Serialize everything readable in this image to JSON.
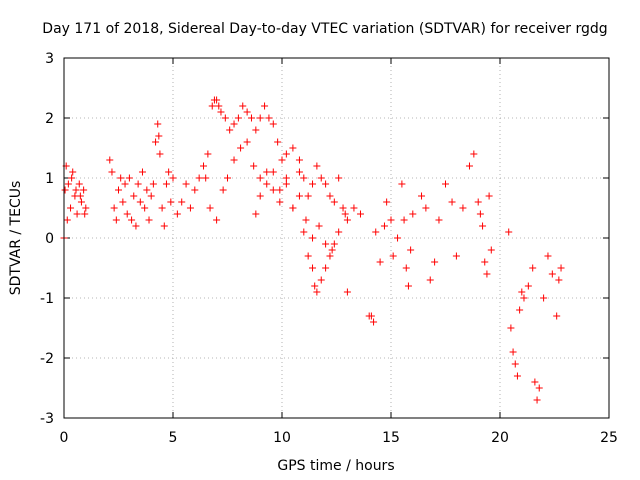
{
  "chart_data": {
    "type": "scatter",
    "title": "Day 171 of 2018, Sidereal Day-to-day VTEC variation (SDTVAR) for receiver rgdg",
    "xlabel": "GPS time / hours",
    "ylabel": "SDTVAR / TECUs",
    "xlim": [
      0,
      25
    ],
    "ylim": [
      -3,
      3
    ],
    "xticks": [
      0,
      5,
      10,
      15,
      20,
      25
    ],
    "yticks": [
      -3,
      -2,
      -1,
      0,
      1,
      2,
      3
    ],
    "xtick_labels": [
      "0",
      "5",
      "10",
      "15",
      "20",
      "25"
    ],
    "ytick_labels": [
      "-3",
      "-2",
      "-1",
      "0",
      "1",
      "2",
      "3"
    ],
    "grid": true,
    "marker": "+",
    "color": "#ff0000",
    "series": [
      {
        "name": "rgdg",
        "x": [
          0.0,
          0.05,
          0.1,
          0.2,
          0.3,
          0.4,
          0.5,
          0.6,
          0.7,
          0.8,
          0.9,
          1.0,
          0.15,
          0.35,
          0.55,
          0.75,
          0.95,
          2.1,
          2.2,
          2.3,
          2.4,
          2.5,
          2.6,
          2.7,
          2.8,
          2.9,
          3.0,
          3.1,
          3.2,
          3.3,
          3.4,
          3.5,
          3.6,
          3.7,
          3.8,
          3.9,
          4.0,
          4.1,
          4.2,
          4.3,
          4.35,
          4.4,
          4.5,
          4.6,
          4.7,
          4.8,
          4.9,
          5.0,
          5.2,
          5.4,
          5.6,
          5.8,
          6.0,
          6.2,
          6.4,
          6.6,
          6.8,
          6.9,
          7.0,
          7.1,
          7.2,
          7.4,
          7.6,
          7.8,
          8.0,
          8.2,
          8.4,
          8.6,
          8.8,
          9.0,
          9.2,
          9.4,
          9.6,
          9.8,
          10.0,
          6.5,
          6.7,
          7.0,
          7.3,
          7.5,
          7.8,
          8.1,
          8.4,
          8.7,
          9.0,
          9.3,
          9.6,
          9.9,
          10.2,
          10.5,
          10.8,
          10.2,
          10.5,
          10.8,
          11.0,
          11.2,
          11.4,
          11.6,
          11.8,
          12.0,
          12.2,
          12.4,
          12.6,
          12.8,
          13.0,
          11.0,
          11.2,
          11.4,
          11.5,
          11.6,
          11.8,
          12.0,
          12.2,
          12.4,
          12.6,
          12.9,
          8.8,
          9.0,
          9.3,
          9.6,
          9.9,
          10.2,
          10.5,
          10.8,
          11.1,
          11.4,
          11.7,
          12.0,
          12.3,
          13.0,
          13.3,
          13.6,
          14.0,
          14.1,
          14.2,
          14.3,
          14.5,
          14.7,
          14.8,
          15.0,
          15.1,
          15.3,
          15.5,
          15.6,
          15.7,
          15.8,
          15.9,
          16.0,
          16.4,
          16.6,
          16.8,
          17.0,
          17.2,
          17.5,
          17.8,
          18.0,
          18.3,
          18.6,
          18.8,
          19.0,
          19.1,
          19.2,
          19.3,
          19.4,
          19.5,
          19.6,
          20.4,
          20.5,
          20.6,
          20.7,
          20.8,
          20.9,
          21.0,
          21.1,
          21.3,
          21.5,
          21.6,
          21.7,
          21.8,
          22.0,
          22.2,
          22.4,
          22.6,
          22.7,
          22.8
        ],
        "y": [
          0.0,
          0.8,
          1.2,
          0.9,
          0.5,
          1.1,
          0.7,
          0.4,
          0.9,
          0.6,
          0.8,
          0.5,
          0.3,
          1.0,
          0.8,
          0.7,
          0.4,
          1.3,
          1.1,
          0.5,
          0.3,
          0.8,
          1.0,
          0.6,
          0.9,
          0.4,
          1.0,
          0.3,
          0.7,
          0.2,
          0.9,
          0.6,
          1.1,
          0.5,
          0.8,
          0.3,
          0.7,
          0.9,
          1.6,
          1.9,
          1.7,
          1.4,
          0.5,
          0.2,
          0.9,
          1.1,
          0.6,
          1.0,
          0.4,
          0.6,
          0.9,
          0.5,
          0.8,
          1.0,
          1.2,
          1.4,
          2.2,
          2.3,
          2.3,
          2.2,
          2.1,
          2.0,
          1.8,
          1.9,
          2.0,
          2.2,
          2.1,
          2.0,
          1.8,
          2.0,
          2.2,
          2.0,
          1.9,
          1.6,
          1.3,
          1.0,
          0.5,
          0.3,
          0.8,
          1.0,
          1.3,
          1.5,
          1.6,
          1.2,
          1.0,
          1.1,
          0.8,
          0.6,
          0.9,
          0.5,
          1.1,
          1.4,
          1.5,
          1.3,
          1.0,
          0.7,
          0.9,
          1.2,
          1.0,
          0.9,
          0.7,
          0.6,
          1.0,
          0.5,
          0.3,
          0.1,
          -0.3,
          -0.5,
          -0.8,
          -0.9,
          -0.7,
          -0.5,
          -0.3,
          -0.1,
          0.1,
          0.4,
          0.4,
          0.7,
          0.9,
          1.1,
          0.8,
          1.0,
          0.5,
          0.7,
          0.3,
          0.0,
          0.2,
          -0.1,
          -0.2,
          -0.9,
          0.5,
          0.4,
          -1.3,
          -1.3,
          -1.4,
          0.1,
          -0.4,
          0.2,
          0.6,
          0.3,
          -0.3,
          0.0,
          0.9,
          0.3,
          -0.5,
          -0.8,
          -0.2,
          0.4,
          0.7,
          0.5,
          -0.7,
          -0.4,
          0.3,
          0.9,
          0.6,
          -0.3,
          0.5,
          1.2,
          1.4,
          0.6,
          0.4,
          0.2,
          -0.4,
          -0.6,
          0.7,
          -0.2,
          0.1,
          -1.5,
          -1.9,
          -2.1,
          -2.3,
          -1.2,
          -0.9,
          -1.0,
          -0.8,
          -0.5,
          -2.4,
          -2.7,
          -2.5,
          -1.0,
          -0.3,
          -0.6,
          -1.3,
          -0.7,
          -0.5
        ]
      }
    ]
  }
}
